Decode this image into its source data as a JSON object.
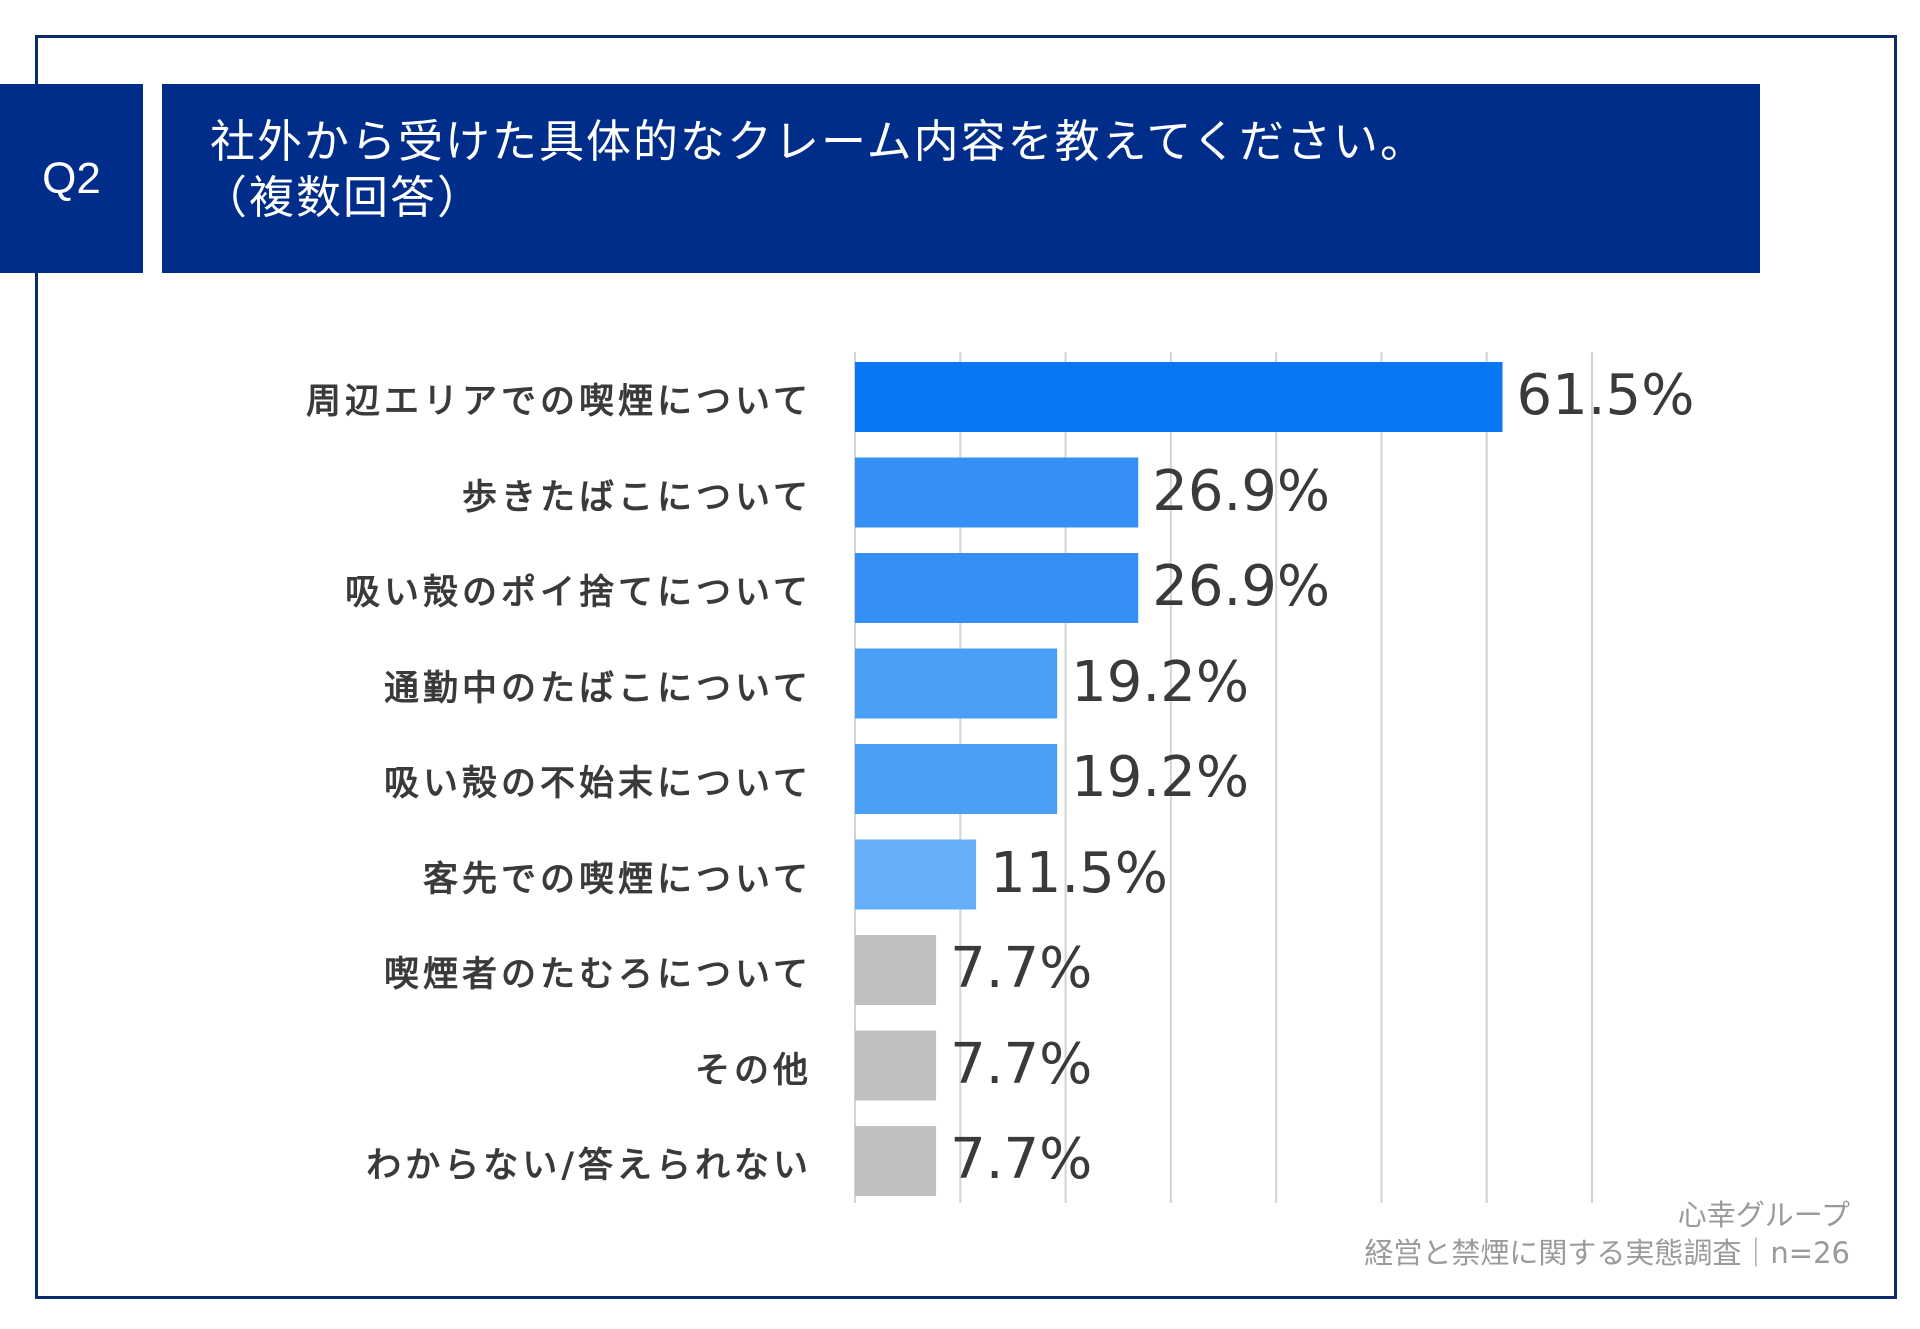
{
  "question": {
    "number": "Q2",
    "title_line1": "社外から受けた具体的なクレーム内容を教えてください。",
    "title_line2": "（複数回答）"
  },
  "colors": {
    "header_bg": "#002c8a",
    "frame": "#0d2a6b",
    "gridline": "#d3d3d3"
  },
  "chart_data": {
    "type": "bar",
    "orientation": "horizontal",
    "title": "社外から受けた具体的なクレーム内容を教えてください。（複数回答）",
    "xlim": [
      0,
      70
    ],
    "grid": true,
    "categories": [
      "周辺エリアでの喫煙について",
      "歩きたばこについて",
      "吸い殻のポイ捨てについて",
      "通勤中のたばこについて",
      "吸い殻の不始末について",
      "客先での喫煙について",
      "喫煙者のたむろについて",
      "その他",
      "わからない/答えられない"
    ],
    "values": [
      61.5,
      26.9,
      26.9,
      19.2,
      19.2,
      11.5,
      7.7,
      7.7,
      7.7
    ],
    "value_labels": [
      "61.5%",
      "26.9%",
      "26.9%",
      "19.2%",
      "19.2%",
      "11.5%",
      "7.7%",
      "7.7%",
      "7.7%"
    ],
    "bar_colors": [
      "#0a78f5",
      "#3490f5",
      "#3490f5",
      "#4b9ef5",
      "#4b9ef5",
      "#66aef7",
      "#c0c0c0",
      "#c0c0c0",
      "#c0c0c0"
    ]
  },
  "credit": {
    "company": "心幸グループ",
    "survey": "経営と禁煙に関する実態調査｜n=26"
  }
}
